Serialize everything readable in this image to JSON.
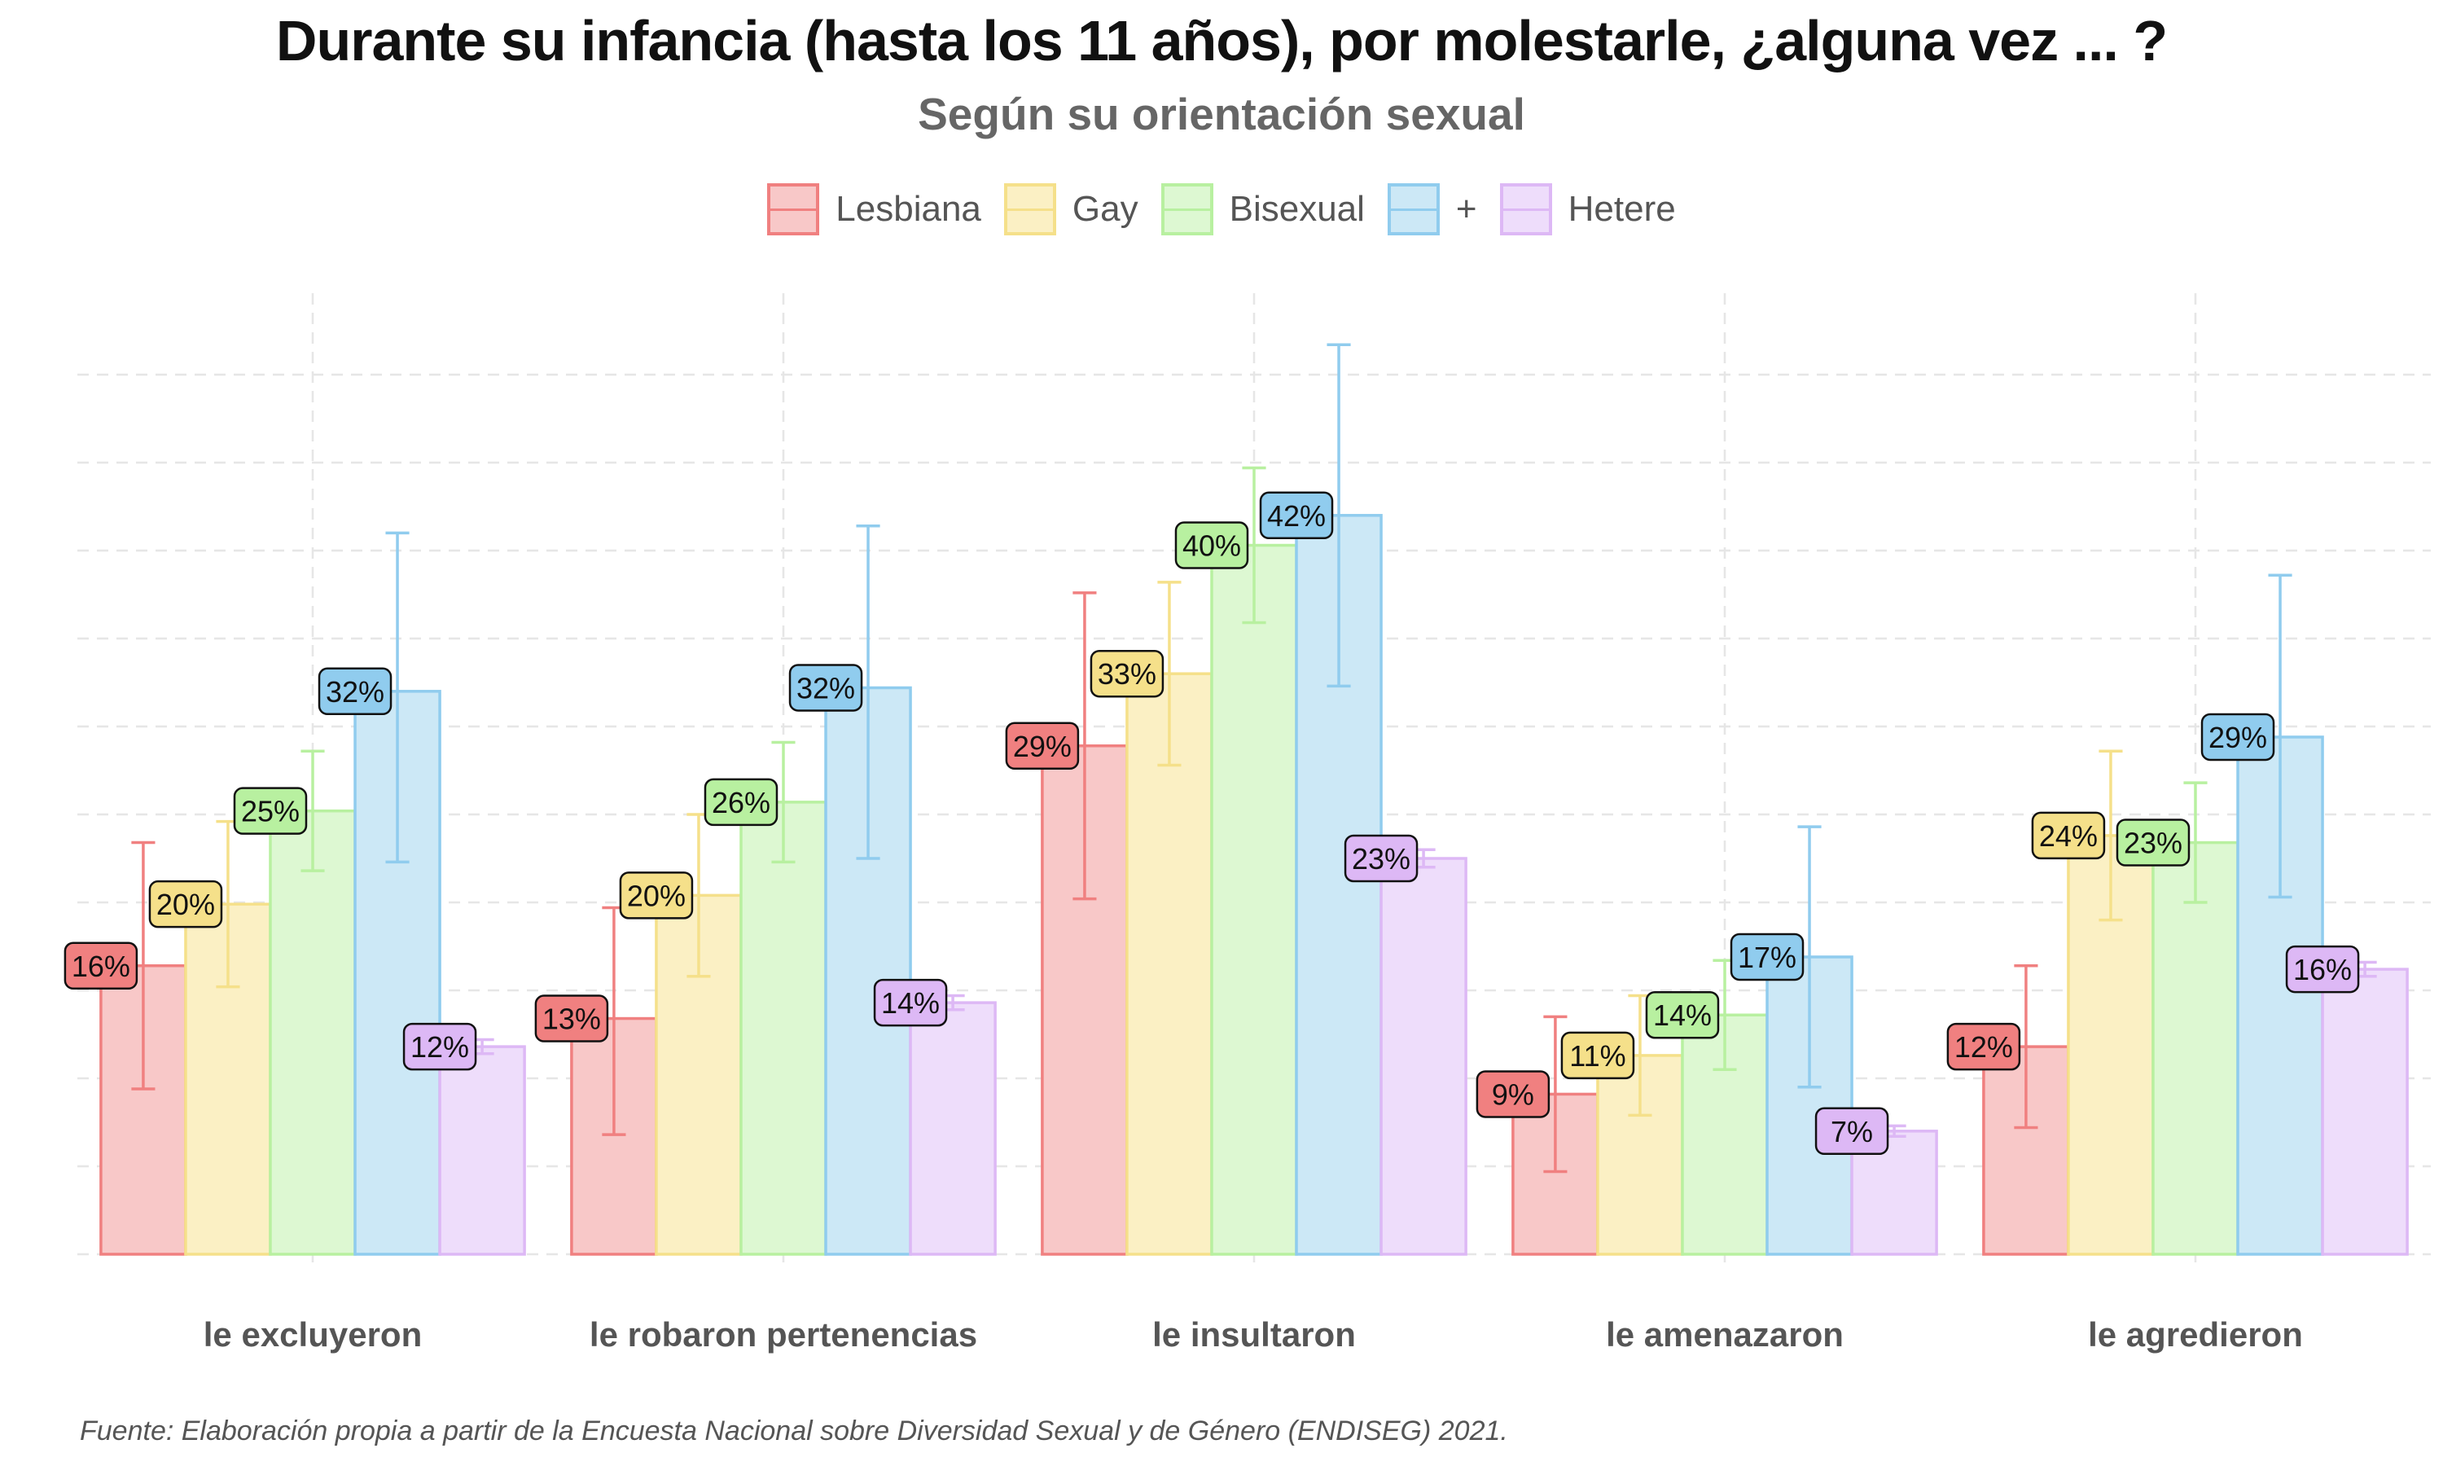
{
  "chart_data": {
    "type": "bar",
    "title": "Durante su infancia (hasta los 11 años), por molestarle, ¿alguna vez ... ?",
    "subtitle": "Según su orientación sexual",
    "categories": [
      "le excluyeron",
      "le robaron pertenencias",
      "le insultaron",
      "le amenazaron",
      "le agredieron"
    ],
    "series": [
      {
        "name": "Lesbiana",
        "color": "#F08080",
        "fill": "#F8C8C8",
        "values": [
          16.4,
          13.4,
          28.9,
          9.1,
          11.8
        ],
        "ci_low": [
          9.4,
          6.8,
          20.2,
          4.7,
          7.2
        ],
        "ci_high": [
          23.4,
          19.7,
          37.6,
          13.5,
          16.4
        ],
        "labels": [
          "16%",
          "13%",
          "29%",
          "9%",
          "12%"
        ]
      },
      {
        "name": "Gay",
        "color": "#F5E08A",
        "fill": "#FBF0C4",
        "values": [
          19.9,
          20.4,
          33.0,
          11.3,
          23.8
        ],
        "ci_low": [
          15.2,
          15.8,
          27.8,
          7.9,
          19.0
        ],
        "ci_high": [
          24.6,
          25.0,
          38.2,
          14.7,
          28.6
        ],
        "labels": [
          "20%",
          "20%",
          "33%",
          "11%",
          "24%"
        ]
      },
      {
        "name": "Bisexual",
        "color": "#B8F0A0",
        "fill": "#DDF8D2",
        "values": [
          25.2,
          25.7,
          40.3,
          13.6,
          23.4
        ],
        "ci_low": [
          21.8,
          22.3,
          35.9,
          10.5,
          20.0
        ],
        "ci_high": [
          28.6,
          29.1,
          44.7,
          16.7,
          26.8
        ],
        "labels": [
          "25%",
          "26%",
          "40%",
          "14%",
          "23%"
        ]
      },
      {
        "name": "+",
        "color": "#90CCEE",
        "fill": "#CCE8F6",
        "values": [
          32.0,
          32.2,
          42.0,
          16.9,
          29.4
        ],
        "ci_low": [
          22.3,
          22.5,
          32.3,
          9.5,
          20.3
        ],
        "ci_high": [
          41.0,
          41.4,
          51.7,
          24.3,
          38.6
        ],
        "labels": [
          "32%",
          "32%",
          "42%",
          "17%",
          "29%"
        ]
      },
      {
        "name": "Hetere",
        "color": "#DDB8F5",
        "fill": "#EEDDFB",
        "values": [
          11.8,
          14.3,
          22.5,
          7.0,
          16.2
        ],
        "ci_low": [
          11.4,
          13.9,
          22.0,
          6.7,
          15.8
        ],
        "ci_high": [
          12.2,
          14.7,
          23.0,
          7.3,
          16.6
        ],
        "labels": [
          "12%",
          "14%",
          "23%",
          "7%",
          "16%"
        ]
      }
    ],
    "error_bars": true,
    "ylim": [
      0,
      50
    ],
    "grid": true,
    "legend_position": "top"
  },
  "source": "Fuente: Elaboración propia a partir de la Encuesta Nacional sobre Diversidad Sexual y de Género (ENDISEG) 2021."
}
